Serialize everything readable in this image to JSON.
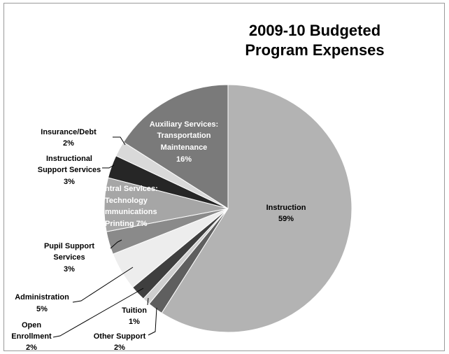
{
  "chart_data": {
    "type": "pie",
    "title_lines": [
      "2009-10 Budgeted",
      "Program Expenses"
    ],
    "start_angle_deg": 90,
    "direction": "clockwise",
    "slices": [
      {
        "category": "Instruction",
        "value_label": "59%",
        "value": 59,
        "color": "#b3b3b3"
      },
      {
        "category": "Other Support",
        "value_label": "2%",
        "value": 2,
        "color": "#5f5f5f"
      },
      {
        "category": "Tuition",
        "value_label": "1%",
        "value": 1,
        "color": "#cfcfcf"
      },
      {
        "category": "Open Enrollment",
        "value_label": "2%",
        "value": 2,
        "color": "#3f3f3f"
      },
      {
        "category": "Administration",
        "value_label": "5%",
        "value": 5,
        "color": "#ededed"
      },
      {
        "category": "Pupil Support Services",
        "value_label": "3%",
        "value": 3,
        "color": "#8a8a8a"
      },
      {
        "category": "Central Services: Technology Communications Printing",
        "value_label": "7%",
        "value": 7,
        "color": "#a6a6a6"
      },
      {
        "category": "Instructional Support Services",
        "value_label": "3%",
        "value": 3,
        "color": "#262626"
      },
      {
        "category": "Insurance/Debt",
        "value_label": "2%",
        "value": 2,
        "color": "#d9d9d9"
      },
      {
        "category": "Auxiliary Services: Transportation Maintenance",
        "value_label": "16%",
        "value": 16,
        "color": "#7a7a7a"
      }
    ],
    "labels": {
      "instruction": [
        "Instruction",
        "59%"
      ],
      "auxiliary": [
        "Auxiliary Services:",
        "Transportation",
        "Maintenance",
        "16%"
      ],
      "central": [
        "ntral Services:",
        "Technology",
        "mmunications",
        "Printing 7%"
      ],
      "insurance": [
        "Insurance/Debt",
        "2%"
      ],
      "instructional_support": [
        "Instructional",
        "Support Services",
        "3%"
      ],
      "pupil": [
        "Pupil Support",
        "Services",
        "3%"
      ],
      "administration": [
        "Administration",
        "5%"
      ],
      "open_enrollment": [
        "Open",
        "Enrollment",
        "2%"
      ],
      "tuition": [
        "Tuition",
        "1%"
      ],
      "other_support": [
        "Other Support",
        "2%"
      ]
    }
  }
}
